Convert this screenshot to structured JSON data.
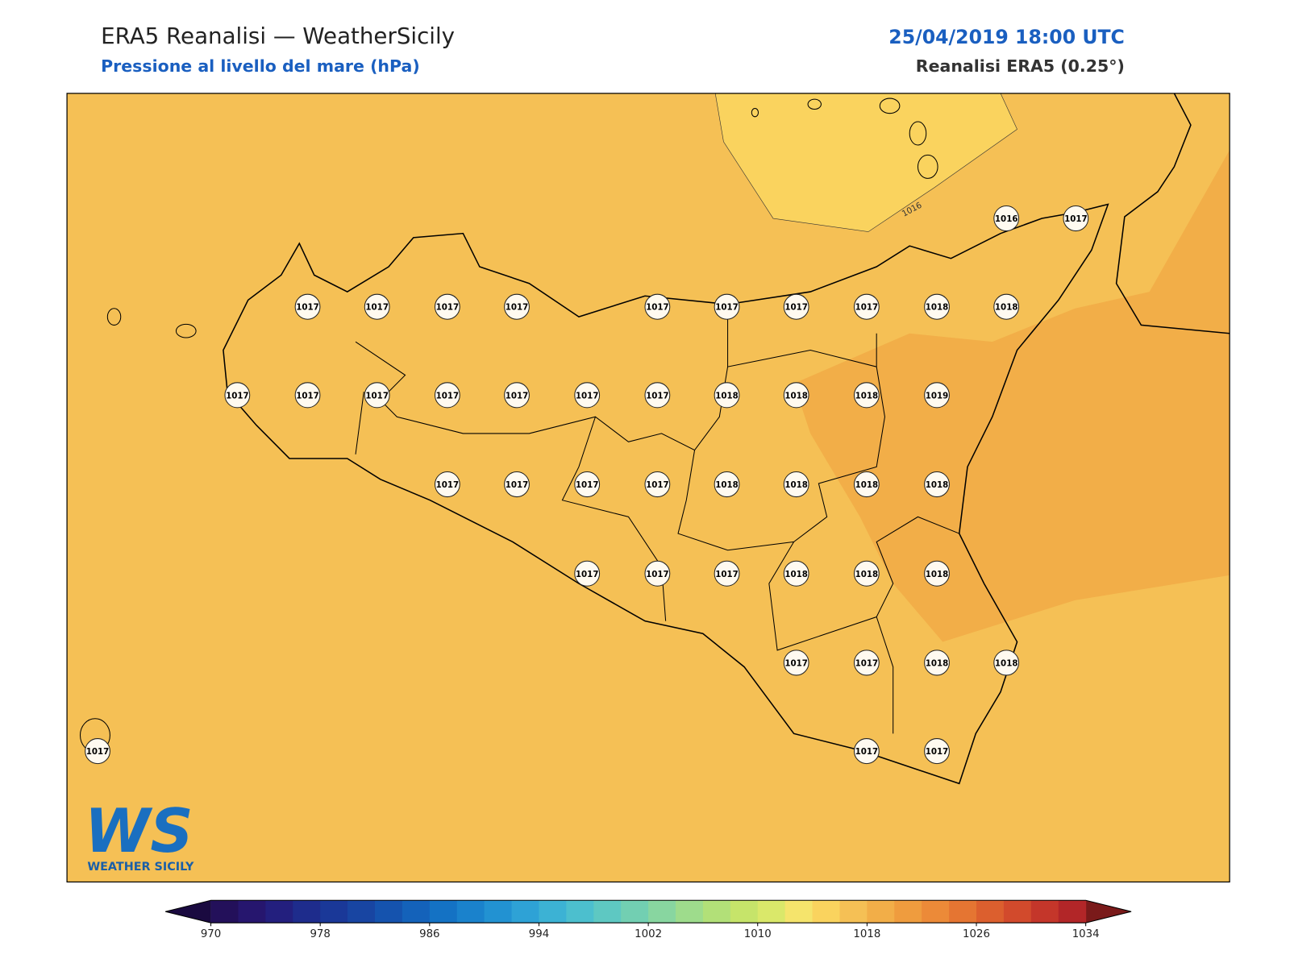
{
  "header": {
    "title": "ERA5 Reanalisi — WeatherSicily",
    "subtitle": "Pressione al livello del mare (hPa)",
    "datetime": "25/04/2019 18:00 UTC",
    "source": "Reanalisi ERA5 (0.25°)"
  },
  "map": {
    "contour_label": "1016",
    "stations": [
      1017,
      1017,
      1017,
      1017,
      1017,
      1017,
      1017,
      1017,
      1018,
      1018,
      1017,
      1017,
      1017,
      1017,
      1017,
      1017,
      1017,
      1018,
      1018,
      1018,
      1019,
      1017,
      1017,
      1017,
      1017,
      1018,
      1018,
      1018,
      1018,
      1017,
      1017,
      1017,
      1018,
      1018,
      1018,
      1017,
      1017,
      1018,
      1018,
      1017,
      1017,
      1016,
      1017,
      1017
    ]
  },
  "colorbar": {
    "lim": [
      970,
      1034
    ],
    "ticks": [
      970,
      978,
      986,
      994,
      1002,
      1010,
      1018,
      1026,
      1034
    ],
    "colors": [
      "#23105a",
      "#26166e",
      "#231f7e",
      "#1e2c8c",
      "#1a3898",
      "#1845a2",
      "#1553ae",
      "#1462ba",
      "#1472c4",
      "#1a82cc",
      "#2292d2",
      "#2ea2d6",
      "#3cb2d4",
      "#4cbfce",
      "#5ec8c2",
      "#72cfb2",
      "#88d6a0",
      "#9edc8c",
      "#b2e078",
      "#c6e46a",
      "#dae86a",
      "#f5e46c",
      "#fad35e",
      "#f5c055",
      "#f2ae48",
      "#ef9c3e",
      "#ec8a38",
      "#e57532",
      "#dc5f2e",
      "#d24a2c",
      "#c4362a",
      "#b22628"
    ],
    "extend_colors": [
      "#1a0a40",
      "#7a1a1a"
    ]
  },
  "logo": {
    "mark": "WS",
    "name": "WEATHER SICILY"
  }
}
